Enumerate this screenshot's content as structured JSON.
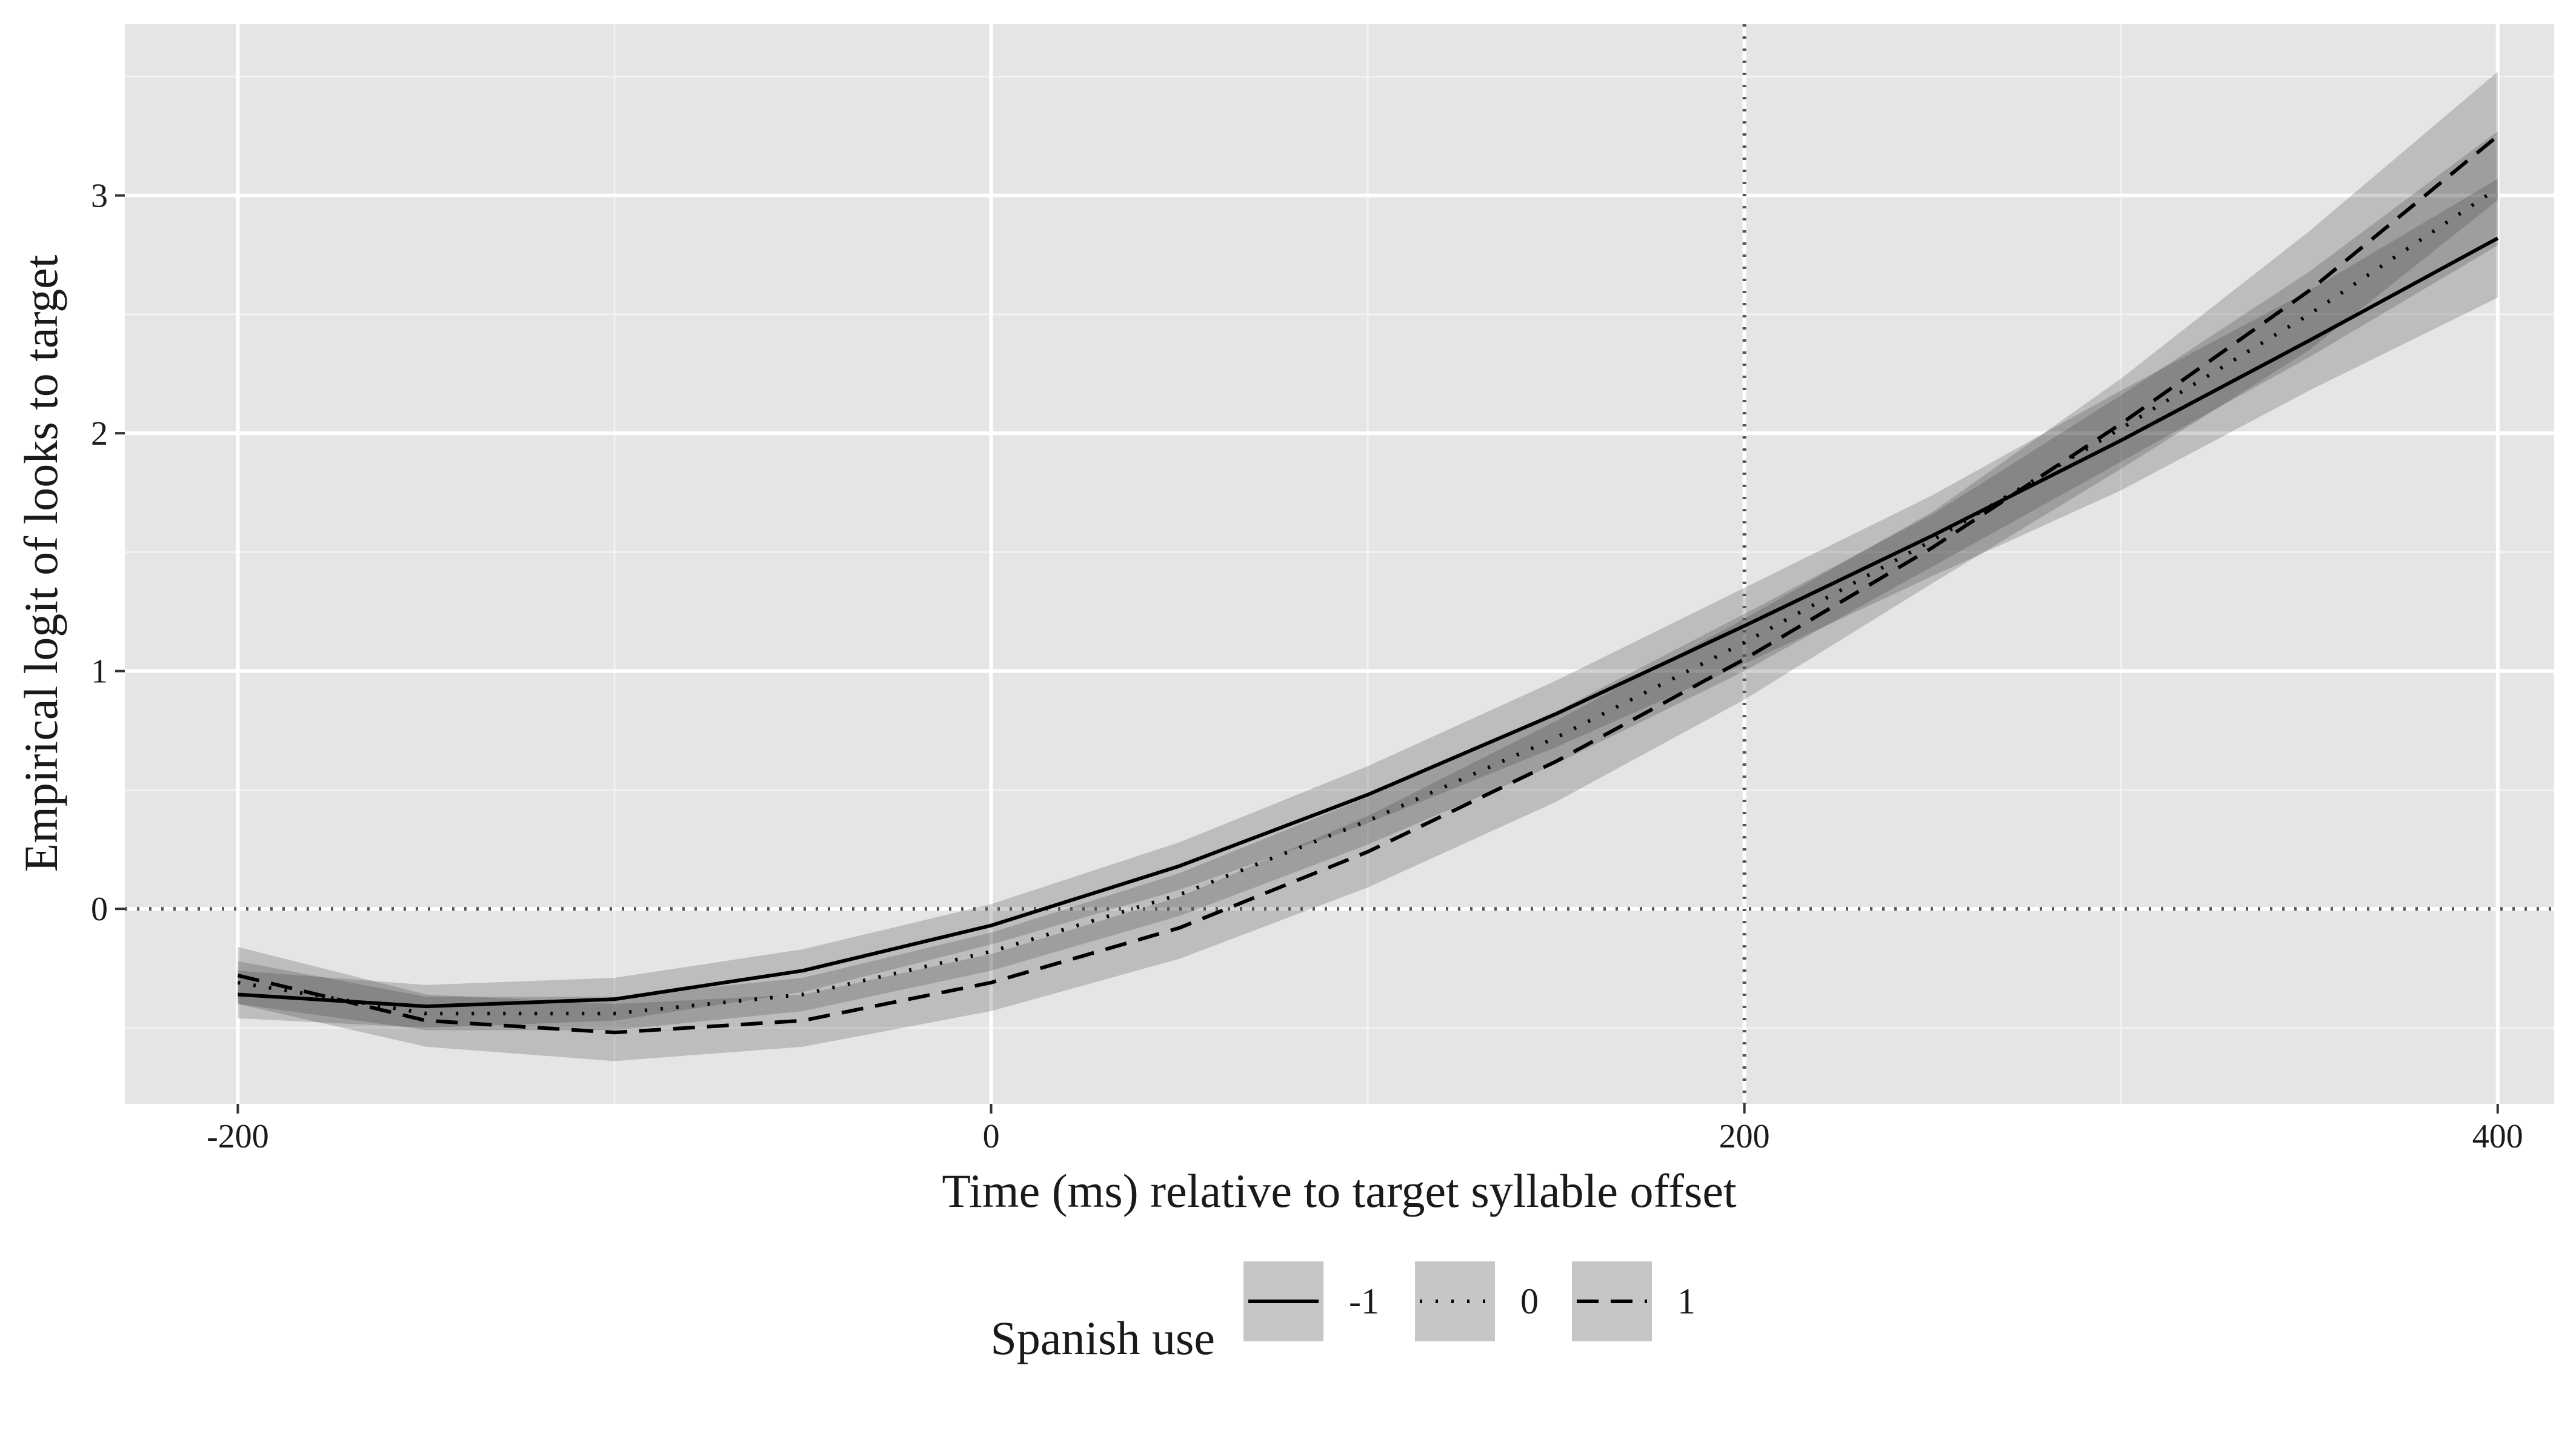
{
  "chart_data": {
    "type": "line",
    "xlabel": "Time (ms) relative to target syllable offset",
    "ylabel": "Empirical logit of looks to target",
    "xlim": [
      -230,
      415
    ],
    "ylim": [
      -0.82,
      3.72
    ],
    "x_ticks": [
      -200,
      0,
      200,
      400
    ],
    "x_tick_labels": [
      "-200",
      "0",
      "200",
      "400"
    ],
    "y_ticks": [
      0,
      1,
      2,
      3
    ],
    "y_tick_labels": [
      "0",
      "1",
      "2",
      "3"
    ],
    "x_minor_gridlines": [
      -100,
      100,
      300
    ],
    "y_minor_gridlines": [
      -0.5,
      0.5,
      1.5,
      2.5,
      3.5
    ],
    "reference_lines": {
      "vertical_x": 200,
      "horizontal_y": 0,
      "style": "dotted"
    },
    "grid": true,
    "legend": {
      "title": "Spanish use",
      "position": "bottom",
      "entries": [
        {
          "label": "-1",
          "linestyle": "solid"
        },
        {
          "label": "0",
          "linestyle": "dotted"
        },
        {
          "label": "1",
          "linestyle": "dashed"
        }
      ]
    },
    "x": [
      -200,
      -150,
      -100,
      -50,
      0,
      50,
      100,
      150,
      200,
      250,
      300,
      350,
      400
    ],
    "series": [
      {
        "name": "-1",
        "linestyle": "solid",
        "values": [
          -0.36,
          -0.41,
          -0.38,
          -0.26,
          -0.07,
          0.18,
          0.48,
          0.82,
          1.19,
          1.57,
          1.97,
          2.39,
          2.82
        ],
        "lower": [
          -0.46,
          -0.5,
          -0.47,
          -0.35,
          -0.15,
          0.08,
          0.36,
          0.68,
          1.03,
          1.4,
          1.76,
          2.18,
          2.57
        ],
        "upper": [
          -0.26,
          -0.32,
          -0.29,
          -0.17,
          0.02,
          0.28,
          0.6,
          0.96,
          1.35,
          1.74,
          2.18,
          2.6,
          3.07
        ]
      },
      {
        "name": "0",
        "linestyle": "dotted",
        "values": [
          -0.31,
          -0.44,
          -0.44,
          -0.36,
          -0.18,
          0.06,
          0.37,
          0.72,
          1.12,
          1.55,
          2.02,
          2.5,
          3.03
        ],
        "lower": [
          -0.4,
          -0.51,
          -0.51,
          -0.43,
          -0.26,
          -0.03,
          0.27,
          0.61,
          1.0,
          1.44,
          1.88,
          2.32,
          2.79
        ],
        "upper": [
          -0.22,
          -0.37,
          -0.37,
          -0.29,
          -0.1,
          0.15,
          0.47,
          0.83,
          1.24,
          1.66,
          2.16,
          2.68,
          3.27
        ]
      },
      {
        "name": "1",
        "linestyle": "dashed",
        "values": [
          -0.28,
          -0.47,
          -0.52,
          -0.47,
          -0.31,
          -0.08,
          0.24,
          0.62,
          1.05,
          1.52,
          2.04,
          2.6,
          3.25
        ],
        "lower": [
          -0.4,
          -0.58,
          -0.64,
          -0.58,
          -0.43,
          -0.21,
          0.09,
          0.45,
          0.88,
          1.37,
          1.85,
          2.35,
          2.98
        ],
        "upper": [
          -0.16,
          -0.36,
          -0.4,
          -0.36,
          -0.19,
          0.05,
          0.39,
          0.79,
          1.22,
          1.67,
          2.23,
          2.85,
          3.52
        ]
      }
    ]
  }
}
